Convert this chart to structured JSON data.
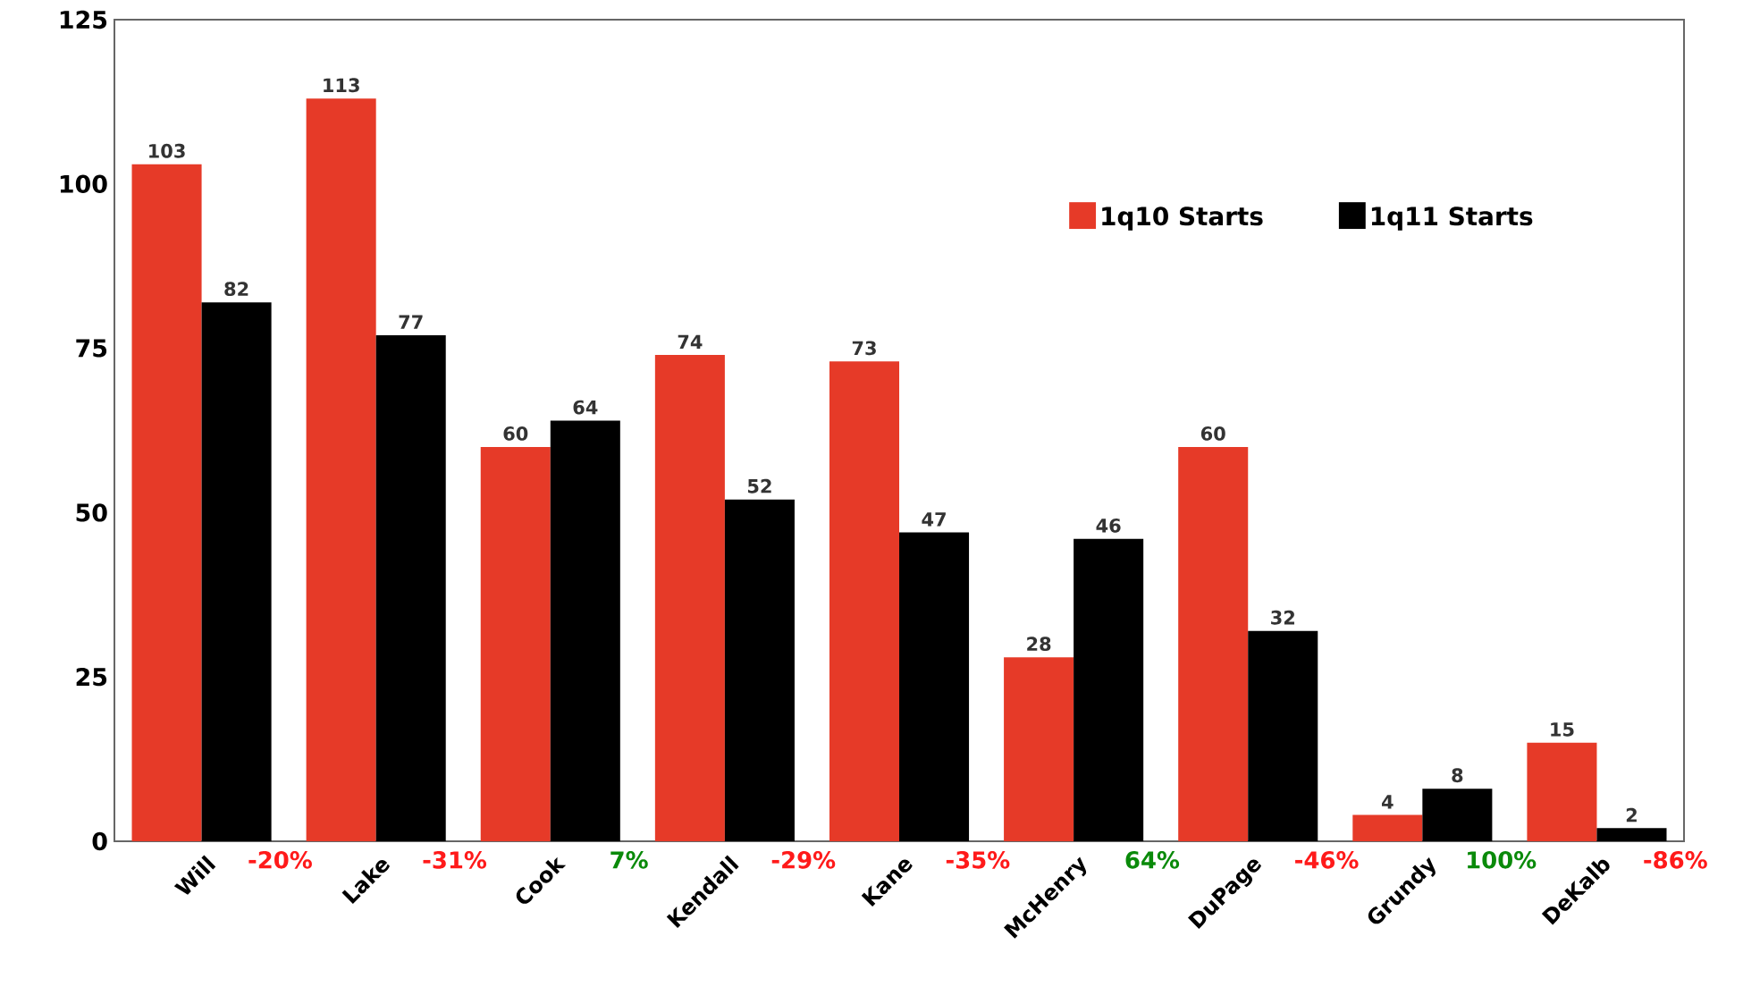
{
  "chart_data": {
    "type": "bar",
    "categories": [
      "Will",
      "Lake",
      "Cook",
      "Kendall",
      "Kane",
      "McHenry",
      "DuPage",
      "Grundy",
      "DeKalb"
    ],
    "series": [
      {
        "name": "1q10 Starts",
        "color": "#e63a28",
        "values": [
          103,
          113,
          60,
          74,
          73,
          28,
          60,
          4,
          15
        ]
      },
      {
        "name": "1q11 Starts",
        "color": "#000000",
        "values": [
          82,
          77,
          64,
          52,
          47,
          46,
          32,
          8,
          2
        ]
      }
    ],
    "ylim": [
      0,
      125
    ],
    "yticks": [
      0,
      25,
      50,
      75,
      100,
      125
    ],
    "data_labels": true,
    "grid": false,
    "legend": "top right",
    "annotations": [
      "-20%",
      "-31%",
      "7%",
      "-29%",
      "-35%",
      "64%",
      "-46%",
      "100%",
      "-86%"
    ]
  }
}
